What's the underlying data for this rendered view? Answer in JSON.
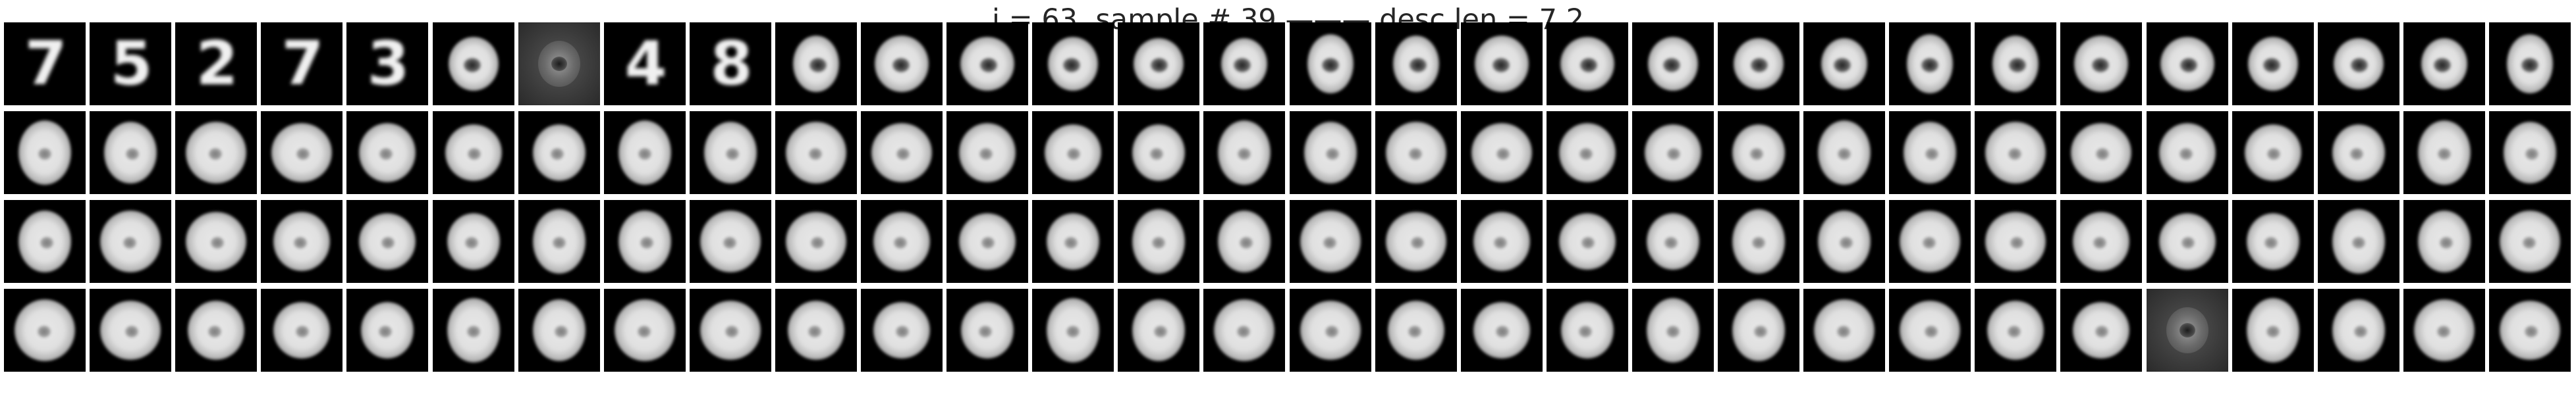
{
  "figure": {
    "title": "i = 63, sample # 39 ——— desc len = 7.2"
  },
  "grid": {
    "rows": 4,
    "columns": 30,
    "tiles": [
      [
        "dig:7",
        "dig:5",
        "dig:2",
        "dig:7",
        "dig:3",
        "zero",
        "noisy",
        "dig:4",
        "dig:8",
        "zero",
        "zero",
        "zero",
        "zero",
        "zero",
        "zero",
        "zero",
        "zero",
        "zero",
        "zero",
        "zero",
        "zero",
        "zero",
        "zero",
        "zero",
        "zero",
        "zero",
        "zero",
        "zero",
        "zero",
        "zero"
      ],
      [
        "zero",
        "zero",
        "zero",
        "zero",
        "zero",
        "zero",
        "zero",
        "zero",
        "zero",
        "zero",
        "zero",
        "zero",
        "zero",
        "zero",
        "zero",
        "zero",
        "zero",
        "zero",
        "zero",
        "zero",
        "zero",
        "zero",
        "zero",
        "zero",
        "zero",
        "zero",
        "zero",
        "zero",
        "zero",
        "zero"
      ],
      [
        "zero",
        "zero",
        "zero",
        "zero",
        "zero",
        "zero",
        "zero",
        "zero",
        "zero",
        "zero",
        "zero",
        "zero",
        "zero",
        "zero",
        "zero",
        "zero",
        "zero",
        "zero",
        "zero",
        "zero",
        "zero",
        "zero",
        "zero",
        "zero",
        "zero",
        "zero",
        "zero",
        "zero",
        "zero",
        "zero"
      ],
      [
        "zero",
        "zero",
        "zero",
        "zero",
        "zero",
        "zero",
        "zero",
        "zero",
        "zero",
        "zero",
        "zero",
        "zero",
        "zero",
        "zero",
        "zero",
        "zero",
        "zero",
        "zero",
        "zero",
        "zero",
        "zero",
        "zero",
        "zero",
        "zero",
        "zero",
        "noisy",
        "zero",
        "zero",
        "zero",
        "zero"
      ]
    ]
  }
}
